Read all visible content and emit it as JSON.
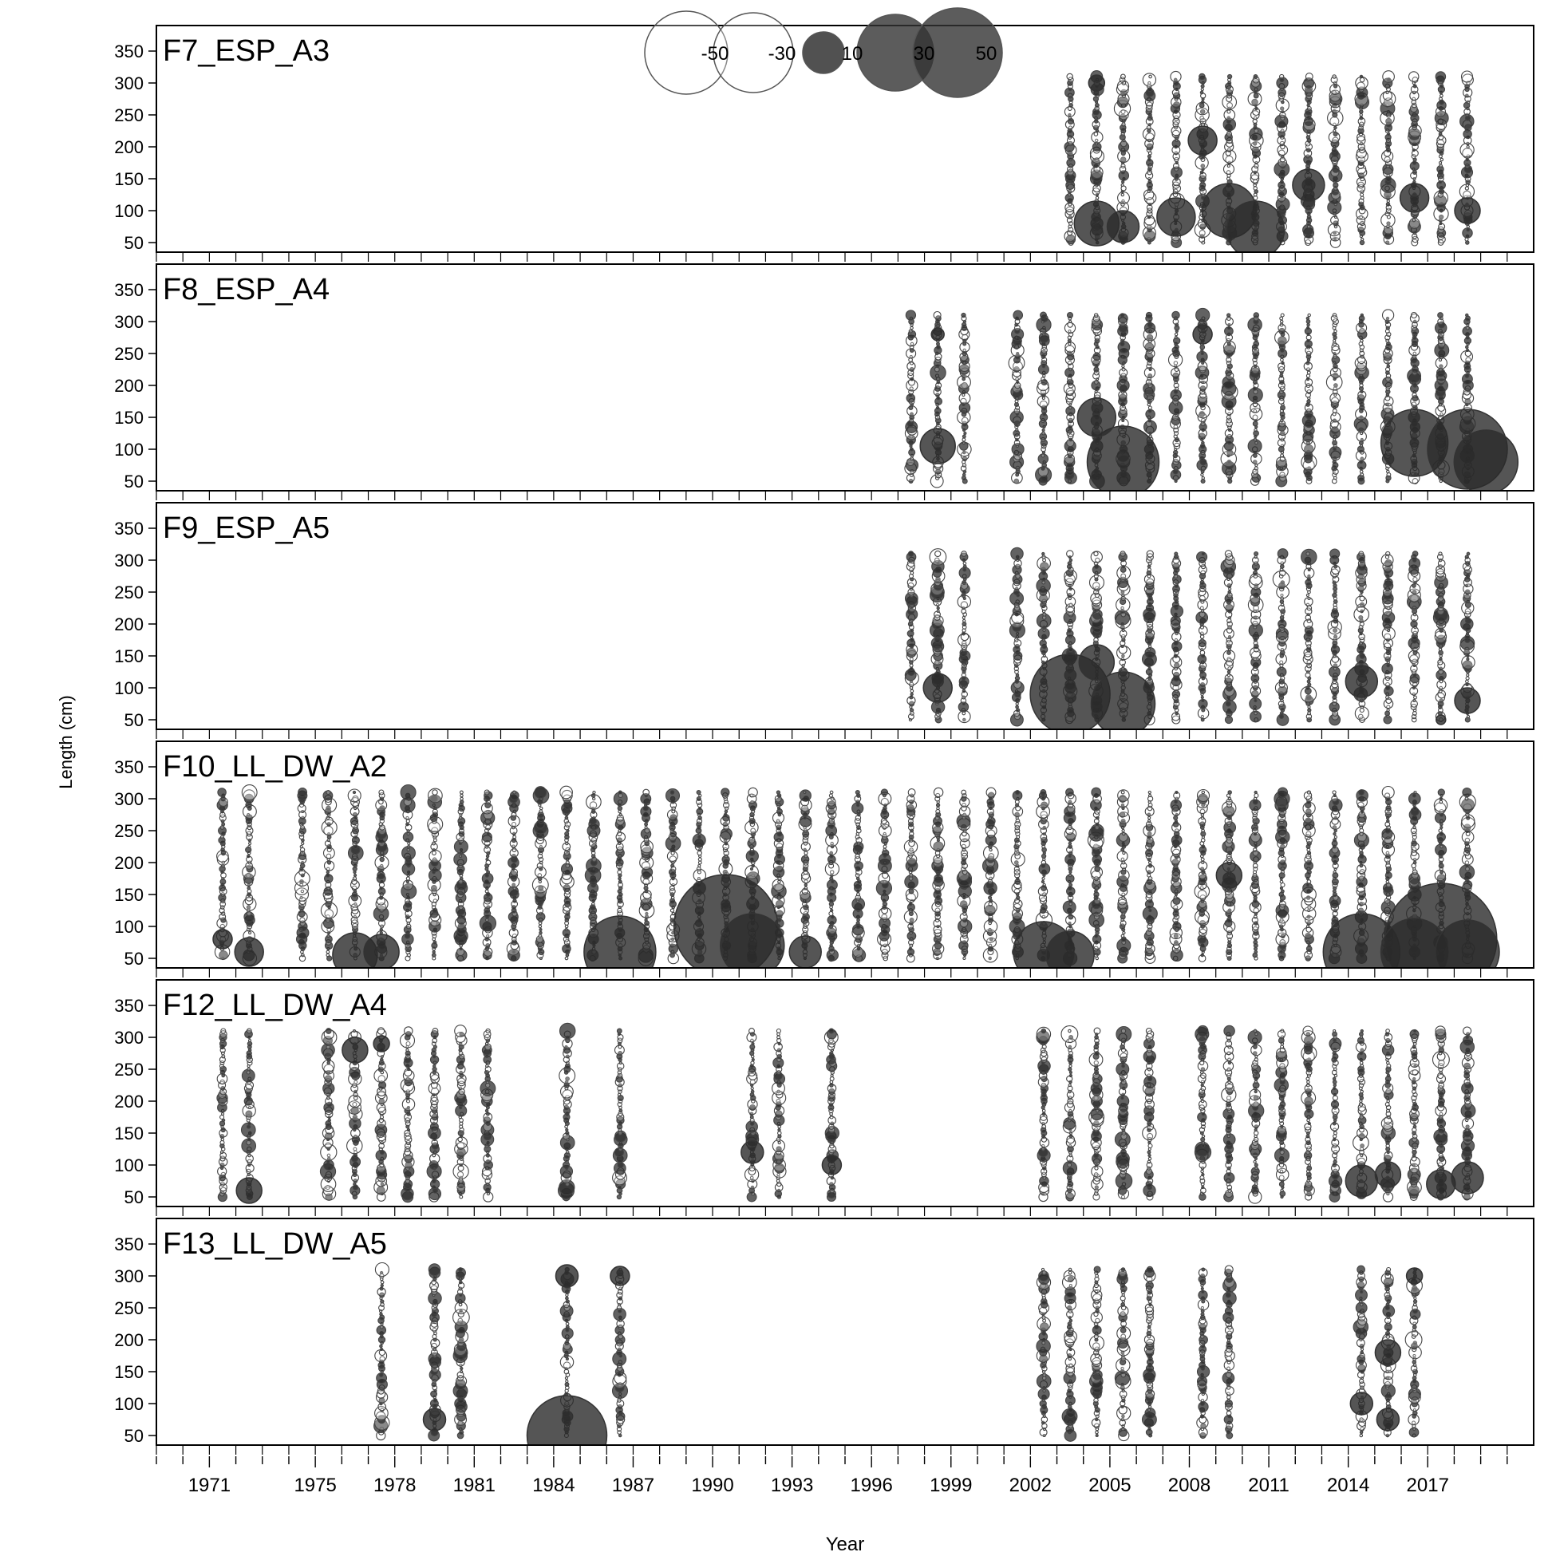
{
  "chart_data": {
    "type": "scatter",
    "subtype": "bubble-residuals",
    "xlabel": "Year",
    "ylabel": "Length (cm)",
    "x_ticks": [
      1971,
      1975,
      1978,
      1981,
      1984,
      1987,
      1990,
      1993,
      1996,
      1999,
      2002,
      2005,
      2008,
      2011,
      2014,
      2017
    ],
    "x_range": [
      1969.0,
      2021.0
    ],
    "y_ticks": [
      50,
      100,
      150,
      200,
      250,
      300,
      350
    ],
    "y_range": [
      35,
      390
    ],
    "legend": {
      "placement": "top-center",
      "values": [
        -50,
        -30,
        10,
        30,
        50
      ],
      "labels": [
        "-50",
        "-30",
        "10",
        "30",
        "50"
      ]
    },
    "colors": {
      "positive": "#333333",
      "negative": "#ffffff",
      "outline": "#555555"
    },
    "panels": [
      {
        "name": "F7_ESP_A3",
        "years": [
          2003.5,
          2004.5,
          2005.5,
          2006.5,
          2007.5,
          2008.5,
          2009.5,
          2010.5,
          2011.5,
          2012.5,
          2013.5,
          2014.5,
          2015.5,
          2016.5,
          2017.5,
          2018.5
        ],
        "highlights": [
          [
            2004.5,
            80,
            28
          ],
          [
            2005.5,
            75,
            20
          ],
          [
            2007.5,
            90,
            24
          ],
          [
            2009.5,
            100,
            34
          ],
          [
            2010.5,
            70,
            36
          ],
          [
            2008.5,
            210,
            18
          ],
          [
            2004.5,
            300,
            10
          ],
          [
            2012.5,
            140,
            20
          ],
          [
            2016.5,
            120,
            18
          ],
          [
            2018.5,
            100,
            16
          ]
        ]
      },
      {
        "name": "F8_ESP_A4",
        "years": [
          1997.5,
          1998.5,
          1999.5,
          2001.5,
          2002.5,
          2003.5,
          2004.5,
          2005.5,
          2006.5,
          2007.5,
          2008.5,
          2009.5,
          2010.5,
          2011.5,
          2012.5,
          2013.5,
          2014.5,
          2015.5,
          2016.5,
          2017.5,
          2018.5
        ],
        "highlights": [
          [
            1998.5,
            105,
            22
          ],
          [
            2005.5,
            80,
            45
          ],
          [
            2004.5,
            150,
            24
          ],
          [
            2016.5,
            110,
            42
          ],
          [
            2018.5,
            100,
            50
          ],
          [
            2019.2,
            80,
            40
          ],
          [
            2008.5,
            280,
            12
          ],
          [
            1998.5,
            280,
            8
          ]
        ]
      },
      {
        "name": "F9_ESP_A5",
        "years": [
          1997.5,
          1998.5,
          1999.5,
          2001.5,
          2002.5,
          2003.5,
          2004.5,
          2005.5,
          2006.5,
          2007.5,
          2008.5,
          2009.5,
          2010.5,
          2011.5,
          2012.5,
          2013.5,
          2014.5,
          2015.5,
          2016.5,
          2017.5,
          2018.5
        ],
        "highlights": [
          [
            2003.5,
            90,
            50
          ],
          [
            2005.5,
            75,
            40
          ],
          [
            2004.5,
            140,
            22
          ],
          [
            2014.5,
            110,
            20
          ],
          [
            2018.5,
            80,
            16
          ],
          [
            2017.5,
            50,
            6
          ],
          [
            1998.5,
            100,
            18
          ]
        ]
      },
      {
        "name": "F10_LL_DW_A2",
        "years": [
          1971.5,
          1972.5,
          1974.5,
          1975.5,
          1976.5,
          1977.5,
          1978.5,
          1979.5,
          1980.5,
          1981.5,
          1982.5,
          1983.5,
          1984.5,
          1985.5,
          1986.5,
          1987.5,
          1988.5,
          1989.5,
          1990.5,
          1991.5,
          1992.5,
          1993.5,
          1994.5,
          1995.5,
          1996.5,
          1997.5,
          1998.5,
          1999.5,
          2000.5,
          2001.5,
          2002.5,
          2003.5,
          2004.5,
          2005.5,
          2006.5,
          2007.5,
          2008.5,
          2009.5,
          2010.5,
          2011.5,
          2012.5,
          2013.5,
          2014.5,
          2015.5,
          2016.5,
          2017.5,
          2018.5
        ],
        "highlights": [
          [
            1971.5,
            80,
            12
          ],
          [
            1972.5,
            60,
            18
          ],
          [
            1976.5,
            55,
            28
          ],
          [
            1977.5,
            60,
            22
          ],
          [
            1986.5,
            60,
            45
          ],
          [
            1990.5,
            100,
            65
          ],
          [
            1991.5,
            70,
            40
          ],
          [
            1993.5,
            60,
            20
          ],
          [
            2002.5,
            60,
            38
          ],
          [
            2003.5,
            55,
            30
          ],
          [
            2014.5,
            60,
            48
          ],
          [
            2017.5,
            80,
            70
          ],
          [
            2016.5,
            60,
            42
          ],
          [
            2018.5,
            60,
            40
          ],
          [
            2009.5,
            180,
            16
          ]
        ]
      },
      {
        "name": "F12_LL_DW_A4",
        "years": [
          1971.5,
          1972.5,
          1975.5,
          1976.5,
          1977.5,
          1978.5,
          1979.5,
          1980.5,
          1981.5,
          1984.5,
          1986.5,
          1991.5,
          1992.5,
          1994.5,
          2002.5,
          2003.5,
          2004.5,
          2005.5,
          2006.5,
          2008.5,
          2009.5,
          2010.5,
          2011.5,
          2012.5,
          2013.5,
          2014.5,
          2015.5,
          2016.5,
          2017.5,
          2018.5
        ],
        "highlights": [
          [
            1972.5,
            60,
            16
          ],
          [
            1976.5,
            280,
            16
          ],
          [
            1977.5,
            290,
            10
          ],
          [
            1991.5,
            120,
            14
          ],
          [
            1994.5,
            100,
            12
          ],
          [
            2014.5,
            75,
            20
          ],
          [
            2015.5,
            85,
            16
          ],
          [
            2017.5,
            70,
            18
          ],
          [
            2018.5,
            80,
            20
          ]
        ]
      },
      {
        "name": "F13_LL_DW_A5",
        "years": [
          1977.5,
          1979.5,
          1980.5,
          1984.5,
          1986.5,
          2002.5,
          2003.5,
          2004.5,
          2005.5,
          2006.5,
          2008.5,
          2009.5,
          2014.5,
          2015.5,
          2016.5
        ],
        "highlights": [
          [
            1984.5,
            50,
            50
          ],
          [
            1984.5,
            300,
            14
          ],
          [
            1986.5,
            300,
            12
          ],
          [
            1979.5,
            75,
            14
          ],
          [
            2015.5,
            180,
            16
          ],
          [
            2015.5,
            75,
            14
          ],
          [
            2014.5,
            100,
            14
          ],
          [
            2016.5,
            300,
            10
          ]
        ]
      }
    ]
  }
}
